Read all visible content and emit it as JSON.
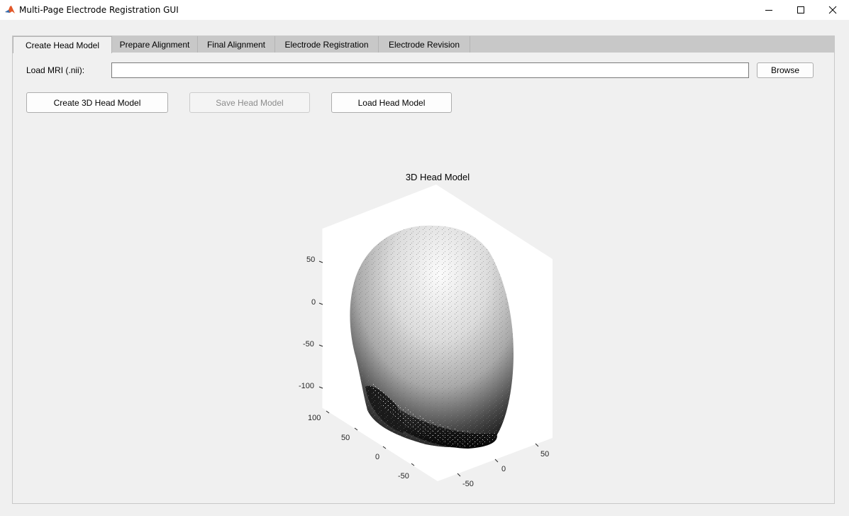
{
  "window": {
    "title": "Multi-Page Electrode Registration GUI",
    "icon": "matlab-icon"
  },
  "tabs": [
    {
      "label": "Create Head Model",
      "active": true
    },
    {
      "label": "Prepare Alignment",
      "active": false
    },
    {
      "label": "Final Alignment",
      "active": false
    },
    {
      "label": "Electrode Registration",
      "active": false
    },
    {
      "label": "Electrode Revision",
      "active": false
    }
  ],
  "mri": {
    "label": "Load MRI (.nii):",
    "value": "",
    "browse_label": "Browse"
  },
  "buttons": {
    "create": "Create 3D Head Model",
    "save": "Save Head Model",
    "save_enabled": false,
    "load": "Load Head Model"
  },
  "axes": {
    "title": "3D Head Model",
    "z_ticks": [
      "50",
      "0",
      "-50",
      "-100"
    ],
    "y_ticks": [
      "100",
      "50",
      "0",
      "-50"
    ],
    "x_ticks": [
      "50",
      "0",
      "-50"
    ]
  }
}
